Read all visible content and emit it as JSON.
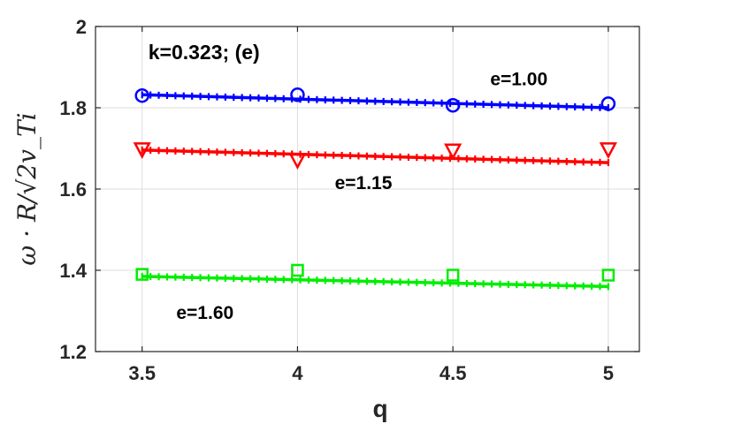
{
  "chart_data": {
    "type": "line",
    "title": "",
    "xlabel": "q",
    "ylabel": "ω · R/√2v_Ti",
    "xlim": [
      3.35,
      5.1
    ],
    "ylim": [
      1.2,
      2.0
    ],
    "x_ticks": [
      "3.5",
      "4",
      "4.5",
      "5"
    ],
    "y_ticks": [
      "1.2",
      "1.4",
      "1.6",
      "1.8",
      "2"
    ],
    "grid": true,
    "annotations": [
      {
        "text": "k=0.323; (e)",
        "x": 3.52,
        "y": 1.92
      },
      {
        "text": "e=1.00",
        "x": 4.62,
        "y": 1.855
      },
      {
        "text": "e=1.15",
        "x": 4.12,
        "y": 1.6
      },
      {
        "text": "e=1.60",
        "x": 3.61,
        "y": 1.28
      }
    ],
    "series": [
      {
        "name": "e=1.00",
        "color": "#0000ff",
        "marker": "circle",
        "points_x": [
          3.5,
          4.0,
          4.5,
          5.0
        ],
        "points_y": [
          1.83,
          1.832,
          1.806,
          1.81
        ],
        "fit_start": 1.832,
        "fit_end": 1.8
      },
      {
        "name": "e=1.15",
        "color": "#ff0000",
        "marker": "triangle-down",
        "points_x": [
          3.5,
          4.0,
          4.5,
          5.0
        ],
        "points_y": [
          1.697,
          1.671,
          1.694,
          1.697
        ],
        "fit_start": 1.696,
        "fit_end": 1.665
      },
      {
        "name": "e=1.60",
        "color": "#00ee00",
        "marker": "square",
        "points_x": [
          3.5,
          4.0,
          4.5,
          5.0
        ],
        "points_y": [
          1.39,
          1.4,
          1.388,
          1.388
        ],
        "fit_start": 1.385,
        "fit_end": 1.36
      }
    ]
  }
}
